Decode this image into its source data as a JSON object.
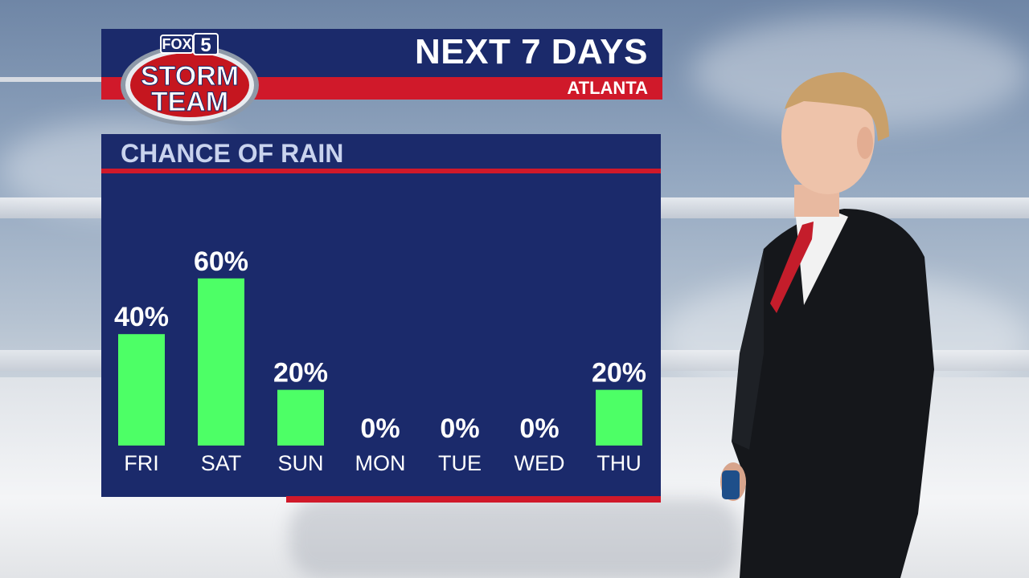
{
  "header": {
    "title": "NEXT 7 DAYS",
    "subtitle": "ATLANTA"
  },
  "logo": {
    "network": "FOX",
    "channel": "5",
    "line1": "STORM",
    "line2": "TEAM"
  },
  "colors": {
    "navy": "#1b2a6b",
    "red": "#d0192a",
    "bar_green": "#4dff66",
    "label_white": "#ffffff"
  },
  "chart_data": {
    "type": "bar",
    "title": "CHANCE OF RAIN",
    "categories": [
      "FRI",
      "SAT",
      "SUN",
      "MON",
      "TUE",
      "WED",
      "THU"
    ],
    "values": [
      40,
      60,
      20,
      0,
      0,
      0,
      20
    ],
    "value_labels": [
      "40%",
      "60%",
      "20%",
      "0%",
      "0%",
      "0%",
      "20%"
    ],
    "unit": "%",
    "ylim": [
      0,
      100
    ],
    "grid": false,
    "legend": "none"
  }
}
